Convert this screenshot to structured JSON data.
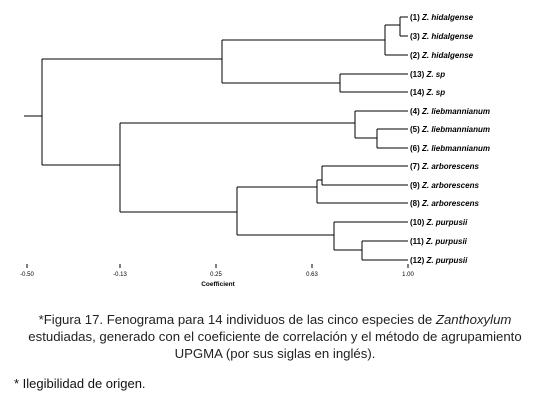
{
  "dendrogram": {
    "leaves": [
      {
        "num": "(1)",
        "genus": "Z.",
        "species": "hidalgense"
      },
      {
        "num": "(3)",
        "genus": "Z.",
        "species": "hidalgense"
      },
      {
        "num": "(2)",
        "genus": "Z.",
        "species": "hidalgense"
      },
      {
        "num": "(13)",
        "genus": "Z.",
        "species": "sp"
      },
      {
        "num": "(14)",
        "genus": "Z.",
        "species": "sp"
      },
      {
        "num": "(4)",
        "genus": "Z.",
        "species": "liebmannianum"
      },
      {
        "num": "(5)",
        "genus": "Z.",
        "species": "liebmannianum"
      },
      {
        "num": "(6)",
        "genus": "Z.",
        "species": "liebmannianum"
      },
      {
        "num": "(7)",
        "genus": "Z.",
        "species": "arborescens"
      },
      {
        "num": "(9)",
        "genus": "Z.",
        "species": "arborescens"
      },
      {
        "num": "(8)",
        "genus": "Z.",
        "species": "arborescens"
      },
      {
        "num": "(10)",
        "genus": "Z.",
        "species": "purpusii"
      },
      {
        "num": "(11)",
        "genus": "Z.",
        "species": "purpusii"
      },
      {
        "num": "(12)",
        "genus": "Z.",
        "species": "purpusii"
      }
    ],
    "axis_ticks": [
      "-0.50",
      "-0.13",
      "0.25",
      "0.63",
      "1.00"
    ],
    "axis_title": "Coefficient"
  },
  "caption": {
    "prefix": "*Figura 17. Fenograma para 14 individuos de las cinco especies de ",
    "genus": "Zanthoxylum",
    "rest": " estudiadas, generado con el coeficiente de correlación y el método de agrupamiento UPGMA  (por sus siglas en inglés)."
  },
  "footnote": "* Ilegibilidad de origen."
}
